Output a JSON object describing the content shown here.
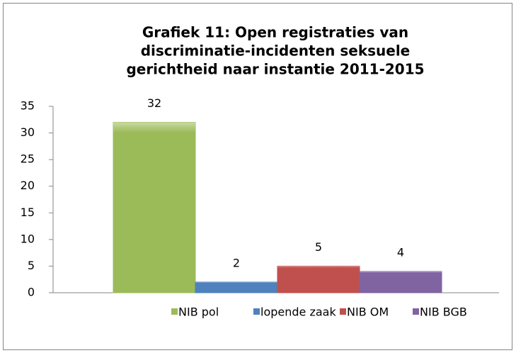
{
  "chart_data": {
    "type": "bar",
    "title": [
      "Grafiek 11: Open registraties van",
      "discriminatie-incidenten seksuele",
      "gerichtheid naar instantie 2011-2015"
    ],
    "categories": [
      null
    ],
    "series": [
      {
        "name": "NIB pol",
        "color": "#9bbb59",
        "values": [
          32
        ]
      },
      {
        "name": "lopende zaak",
        "color": "#4f81bd",
        "values": [
          2
        ]
      },
      {
        "name": "NIB OM",
        "color": "#c0504d",
        "values": [
          5
        ]
      },
      {
        "name": "NIB BGB",
        "color": "#8064a2",
        "values": [
          4
        ]
      }
    ],
    "ylim": [
      0,
      35
    ],
    "yticks": [
      0,
      5,
      10,
      15,
      20,
      25,
      30,
      35
    ],
    "grid": false,
    "legend": "bottom",
    "data_labels": true
  }
}
